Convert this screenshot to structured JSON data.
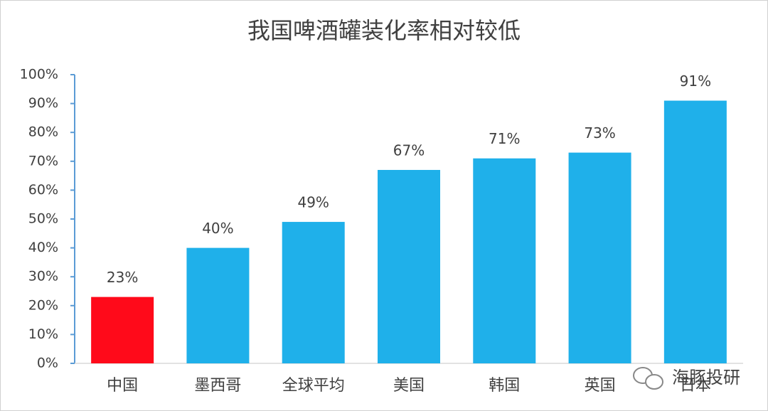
{
  "chart_data": {
    "type": "bar",
    "title": "我国啤酒罐装化率相对较低",
    "categories": [
      "中国",
      "墨西哥",
      "全球平均",
      "美国",
      "韩国",
      "英国",
      "日本"
    ],
    "values": [
      23,
      40,
      49,
      67,
      71,
      73,
      91
    ],
    "value_labels": [
      "23%",
      "40%",
      "49%",
      "67%",
      "71%",
      "73%",
      "91%"
    ],
    "colors": [
      "#ff0a1a",
      "#1fb0ea",
      "#1fb0ea",
      "#1fb0ea",
      "#1fb0ea",
      "#1fb0ea",
      "#1fb0ea"
    ],
    "ylim": [
      0,
      100
    ],
    "yticks": [
      {
        "value": 0,
        "label": "0%"
      },
      {
        "value": 10,
        "label": "10%"
      },
      {
        "value": 20,
        "label": "20%"
      },
      {
        "value": 30,
        "label": "30%"
      },
      {
        "value": 40,
        "label": "40%"
      },
      {
        "value": 50,
        "label": "50%"
      },
      {
        "value": 60,
        "label": "60%"
      },
      {
        "value": 70,
        "label": "70%"
      },
      {
        "value": 80,
        "label": "80%"
      },
      {
        "value": 90,
        "label": "90%"
      },
      {
        "value": 100,
        "label": "100%"
      }
    ],
    "grid": false,
    "watermark": "海豚投研"
  }
}
